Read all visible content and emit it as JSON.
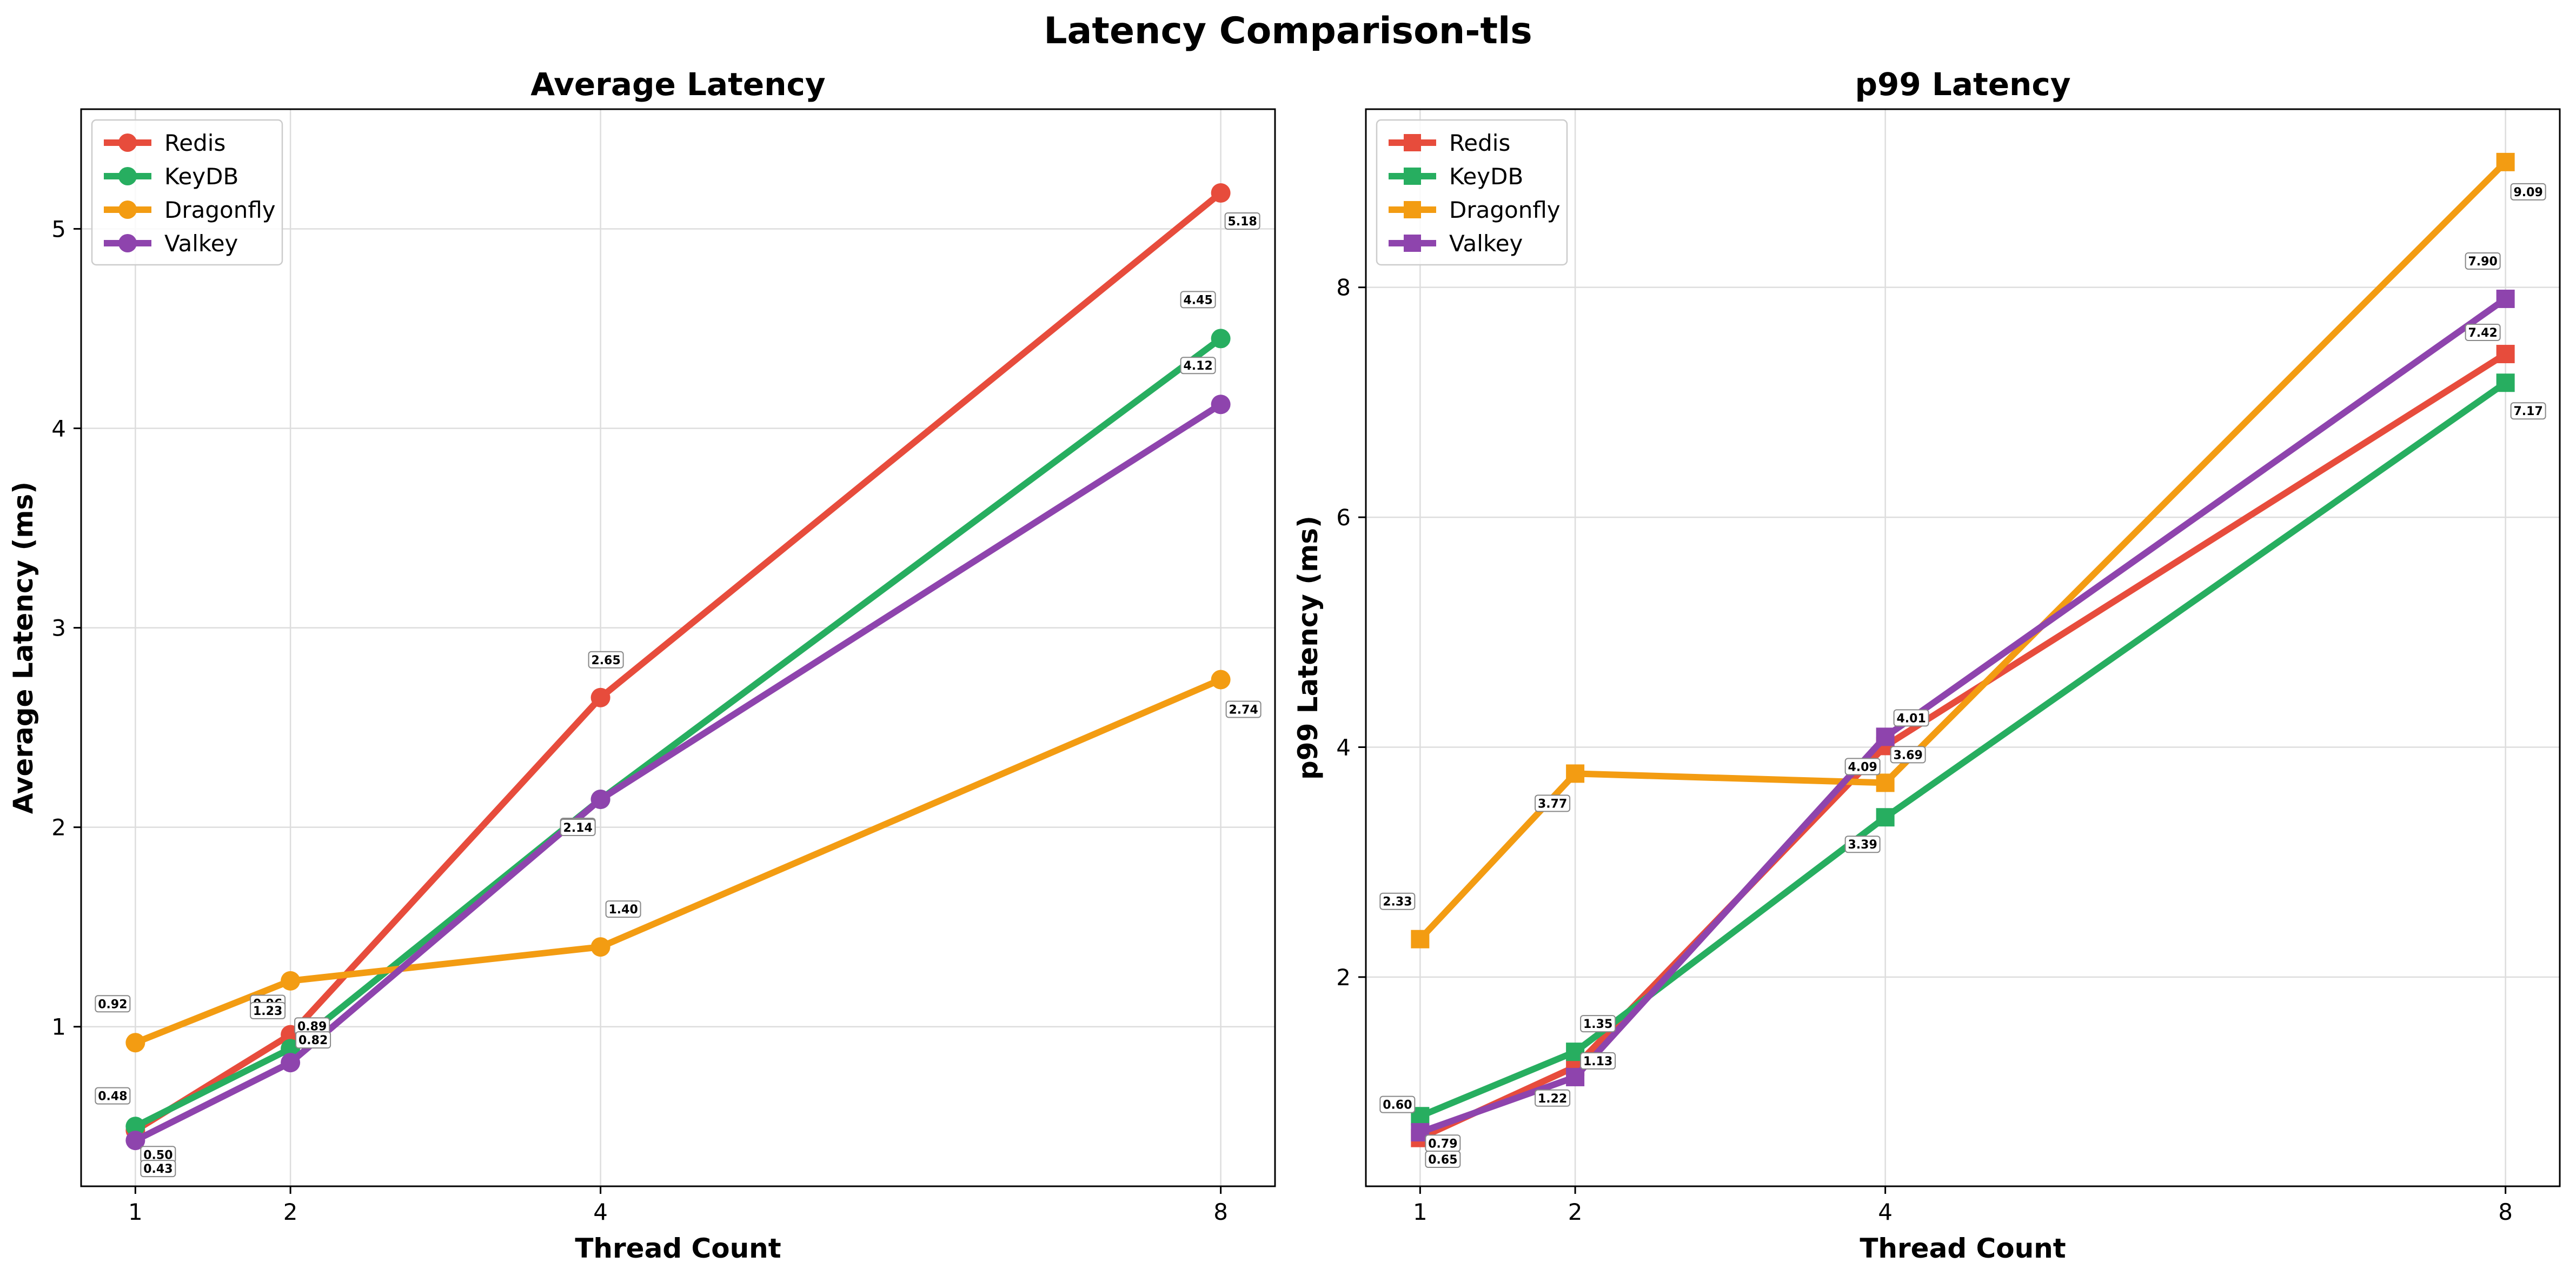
{
  "figure": {
    "title": "Latency Comparison-tls"
  },
  "colors": {
    "Redis": "#e74c3c",
    "KeyDB": "#27ae60",
    "Dragonfly": "#f39c12",
    "Valkey": "#8e44ad"
  },
  "chart_data": [
    {
      "type": "line",
      "title": "Average Latency",
      "xlabel": "Thread Count",
      "ylabel": "Average Latency (ms)",
      "x": [
        1,
        2,
        4,
        8
      ],
      "xticks": [
        "1",
        "2",
        "4",
        "8"
      ],
      "xlim": [
        0.65,
        8.35
      ],
      "ylim": [
        0.2,
        5.6
      ],
      "yticks": [
        "1",
        "2",
        "3",
        "4",
        "5"
      ],
      "yticks_values": [
        1,
        2,
        3,
        4,
        5
      ],
      "grid": true,
      "legend": "top-left",
      "marker": "circle",
      "series": [
        {
          "name": "Redis",
          "values": [
            0.48,
            0.96,
            2.65,
            5.18
          ],
          "labels": [
            "0.48",
            "0.96",
            "2.65",
            "5.18"
          ]
        },
        {
          "name": "KeyDB",
          "values": [
            0.5,
            0.89,
            2.14,
            4.45
          ],
          "labels": [
            "0.50",
            "0.89",
            "2.14",
            "4.45"
          ]
        },
        {
          "name": "Dragonfly",
          "values": [
            0.92,
            1.23,
            1.4,
            2.74
          ],
          "labels": [
            "0.92",
            "1.23",
            "1.40",
            "2.74"
          ]
        },
        {
          "name": "Valkey",
          "values": [
            0.43,
            0.82,
            2.14,
            4.12
          ],
          "labels": [
            "0.43",
            "0.82",
            "2.14",
            "4.12"
          ]
        }
      ]
    },
    {
      "type": "line",
      "title": "p99 Latency",
      "xlabel": "Thread Count",
      "ylabel": "p99 Latency (ms)",
      "x": [
        1,
        2,
        4,
        8
      ],
      "xticks": [
        "1",
        "2",
        "4",
        "8"
      ],
      "xlim": [
        0.65,
        8.35
      ],
      "ylim": [
        0.18,
        9.55
      ],
      "yticks": [
        "2",
        "4",
        "6",
        "8"
      ],
      "yticks_values": [
        2,
        4,
        6,
        8
      ],
      "grid": true,
      "legend": "top-left",
      "marker": "square",
      "series": [
        {
          "name": "Redis",
          "values": [
            0.6,
            1.22,
            4.01,
            7.42
          ],
          "labels": [
            "0.60",
            "1.22",
            "4.01",
            "7.42"
          ]
        },
        {
          "name": "KeyDB",
          "values": [
            0.79,
            1.35,
            3.39,
            7.17
          ],
          "labels": [
            "0.79",
            "1.35",
            "3.39",
            "7.17"
          ]
        },
        {
          "name": "Dragonfly",
          "values": [
            2.33,
            3.77,
            3.69,
            9.09
          ],
          "labels": [
            "2.33",
            "3.77",
            "3.69",
            "9.09"
          ]
        },
        {
          "name": "Valkey",
          "values": [
            0.65,
            1.13,
            4.09,
            7.9
          ],
          "labels": [
            "0.65",
            "1.13",
            "4.09",
            "7.90"
          ]
        }
      ]
    }
  ]
}
